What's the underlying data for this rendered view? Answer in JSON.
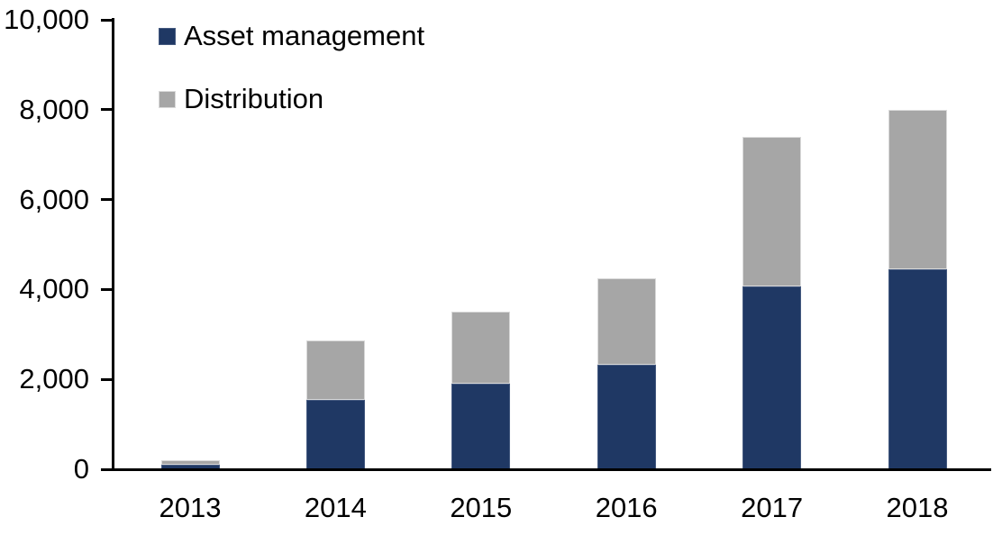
{
  "chart_data": {
    "type": "bar",
    "stacked": true,
    "categories": [
      "2013",
      "2014",
      "2015",
      "2016",
      "2017",
      "2018"
    ],
    "series": [
      {
        "name": "Asset management",
        "color": "#1f3864",
        "values": [
          100,
          1550,
          1900,
          2330,
          4070,
          4450
        ]
      },
      {
        "name": "Distribution",
        "color": "#a6a6a6",
        "values": [
          100,
          1320,
          1600,
          1920,
          3330,
          3550
        ]
      }
    ],
    "totals": [
      200,
      2870,
      3500,
      4250,
      7400,
      8000
    ],
    "ylim": [
      0,
      10000
    ],
    "y_ticks": [
      0,
      2000,
      4000,
      6000,
      8000,
      10000
    ],
    "y_tick_labels": [
      "0",
      "2,000",
      "4,000",
      "6,000",
      "8,000",
      "10,000"
    ],
    "xlabel": "",
    "ylabel": "",
    "grid": false,
    "legend_position": "top-left",
    "axis_color": "#000000",
    "background_color": "#ffffff"
  }
}
